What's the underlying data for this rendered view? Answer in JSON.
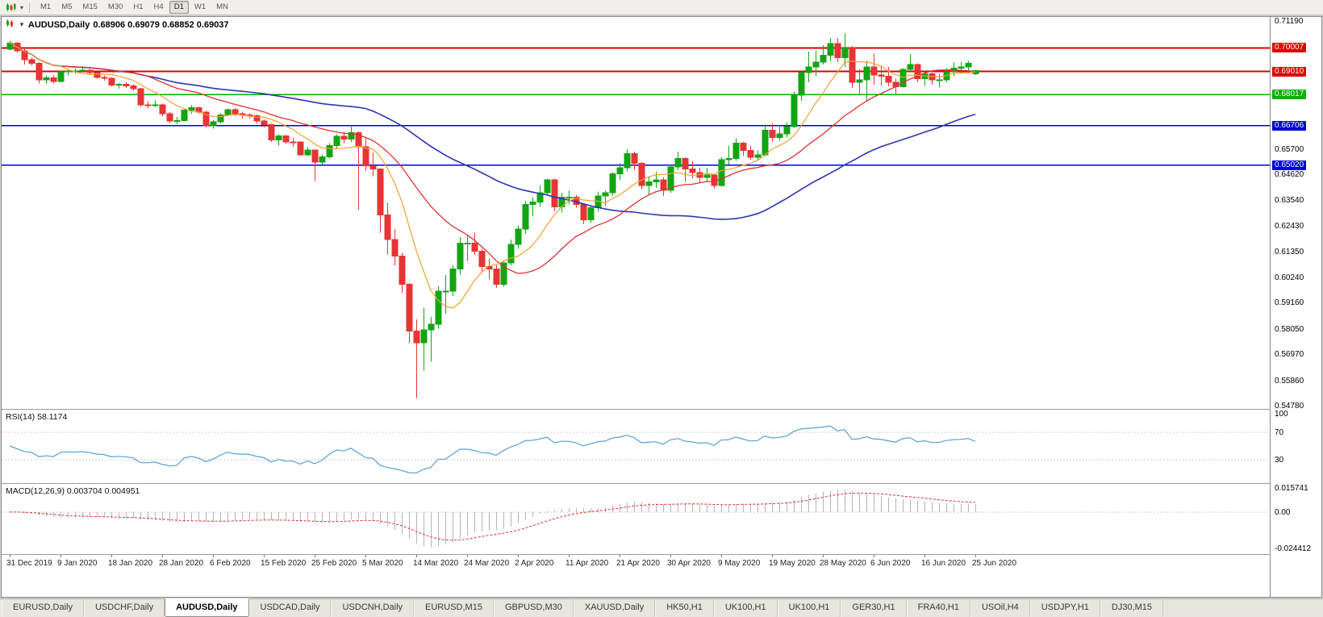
{
  "toolbar": {
    "chart_type_icon": "candlestick-chart-icon",
    "dropdown_icon": "chevron-down-icon",
    "timeframes": [
      "M1",
      "M5",
      "M15",
      "M30",
      "H1",
      "H4",
      "D1",
      "W1",
      "MN"
    ],
    "active_timeframe": "D1"
  },
  "chart_header": {
    "symbol_period": "AUDUSD,Daily",
    "ohlc": "0.68906 0.69079 0.68852 0.69037",
    "open": "0.68906",
    "high": "0.69079",
    "low": "0.68852",
    "close": "0.69037"
  },
  "price_axis": {
    "scale_labels": [
      {
        "text": "0.71190",
        "price": 0.7119
      },
      {
        "text": "0.65700",
        "price": 0.657
      },
      {
        "text": "0.64620",
        "price": 0.6462
      },
      {
        "text": "0.63540",
        "price": 0.6354
      },
      {
        "text": "0.62430",
        "price": 0.6243
      },
      {
        "text": "0.61350",
        "price": 0.6135
      },
      {
        "text": "0.60240",
        "price": 0.6024
      },
      {
        "text": "0.59160",
        "price": 0.5916
      },
      {
        "text": "0.58050",
        "price": 0.5805
      },
      {
        "text": "0.56970",
        "price": 0.5697
      },
      {
        "text": "0.55860",
        "price": 0.5586
      },
      {
        "text": "0.54780",
        "price": 0.5478
      }
    ],
    "badges": [
      {
        "text": "0.70007",
        "price": 0.70007,
        "color": "#e00000"
      },
      {
        "text": "0.69010",
        "price": 0.6901,
        "color": "#e00000"
      },
      {
        "text": "0.68017",
        "price": 0.68017,
        "color": "#00b200"
      },
      {
        "text": "0.66706",
        "price": 0.66706,
        "color": "#0000d8"
      },
      {
        "text": "0.65020",
        "price": 0.6502,
        "color": "#0000d8"
      }
    ]
  },
  "rsi_panel": {
    "name": "RSI(14)",
    "value": "58.1174",
    "line_color": "#5a9fd4",
    "level_upper": 70,
    "level_lower": 30,
    "scale": [
      {
        "text": "100",
        "value": 100
      },
      {
        "text": "70",
        "value": 70
      },
      {
        "text": "30",
        "value": 30
      }
    ]
  },
  "macd_panel": {
    "name": "MACD(12,26,9)",
    "values": "0.003704 0.004951",
    "histogram_color": "#b4b4b4",
    "signal_color": "#e03030",
    "range": [
      -0.024412,
      0.015741
    ],
    "scale": [
      {
        "text": "0.015741",
        "value": 0.015741
      },
      {
        "text": "0.00",
        "value": 0
      },
      {
        "text": "-0.024412",
        "value": -0.024412
      }
    ]
  },
  "tabs": {
    "active_index": 2,
    "items": [
      {
        "label": "EURUSD,Daily"
      },
      {
        "label": "USDCHF,Daily"
      },
      {
        "label": "AUDUSD,Daily"
      },
      {
        "label": "USDCAD,Daily"
      },
      {
        "label": "USDCNH,Daily"
      },
      {
        "label": "EURUSD,M15"
      },
      {
        "label": "GBPUSD,M30"
      },
      {
        "label": "XAUUSD,Daily"
      },
      {
        "label": "HK50,H1"
      },
      {
        "label": "UK100,H1"
      },
      {
        "label": "UK100,H1"
      },
      {
        "label": "GER30,H1"
      },
      {
        "label": "FRA40,H1"
      },
      {
        "label": "USOil,H4"
      },
      {
        "label": "USDJPY,H1"
      },
      {
        "label": "DJ30,M15"
      }
    ]
  },
  "chart_data": {
    "type": "candlestick",
    "symbol": "AUDUSD",
    "timeframe": "Daily",
    "ylim": [
      0.5478,
      0.7119
    ],
    "up_color": "#12a512",
    "down_color": "#e73434",
    "ma": {
      "fast": {
        "period": 8,
        "color": "#f0a132"
      },
      "mid": {
        "period": 20,
        "color": "#dd3333"
      },
      "slow": {
        "period": 50,
        "color": "#2d35b5"
      }
    },
    "x_tick_labels": [
      "31 Dec 2019",
      "9 Jan 2020",
      "18 Jan 2020",
      "28 Jan 2020",
      "6 Feb 2020",
      "15 Feb 2020",
      "25 Feb 2020",
      "5 Mar 2020",
      "14 Mar 2020",
      "24 Mar 2020",
      "2 Apr 2020",
      "11 Apr 2020",
      "21 Apr 2020",
      "30 Apr 2020",
      "9 May 2020",
      "19 May 2020",
      "28 May 2020",
      "6 Jun 2020",
      "16 Jun 2020",
      "25 Jun 2020"
    ],
    "candles": [
      [
        0.6995,
        0.7032,
        0.699,
        0.7021
      ],
      [
        0.7021,
        0.7026,
        0.698,
        0.6988
      ],
      [
        0.6988,
        0.7,
        0.693,
        0.695
      ],
      [
        0.695,
        0.696,
        0.6925,
        0.6935
      ],
      [
        0.6935,
        0.694,
        0.685,
        0.6865
      ],
      [
        0.6865,
        0.6882,
        0.685,
        0.6874
      ],
      [
        0.6874,
        0.6884,
        0.6849,
        0.6858
      ],
      [
        0.6858,
        0.6905,
        0.6855,
        0.69
      ],
      [
        0.69,
        0.6912,
        0.6884,
        0.6903
      ],
      [
        0.6903,
        0.6913,
        0.689,
        0.6903
      ],
      [
        0.6903,
        0.6923,
        0.6897,
        0.6906
      ],
      [
        0.6906,
        0.6912,
        0.6885,
        0.6896
      ],
      [
        0.6896,
        0.69,
        0.687,
        0.6876
      ],
      [
        0.6876,
        0.6884,
        0.6862,
        0.6871
      ],
      [
        0.6871,
        0.6875,
        0.6837,
        0.6843
      ],
      [
        0.6843,
        0.6852,
        0.6828,
        0.6846
      ],
      [
        0.6846,
        0.6855,
        0.6829,
        0.684
      ],
      [
        0.684,
        0.6846,
        0.6818,
        0.6828
      ],
      [
        0.6828,
        0.683,
        0.675,
        0.6758
      ],
      [
        0.6758,
        0.6774,
        0.6744,
        0.6755
      ],
      [
        0.6755,
        0.6778,
        0.675,
        0.6759
      ],
      [
        0.6759,
        0.6764,
        0.671,
        0.672
      ],
      [
        0.672,
        0.6728,
        0.6682,
        0.669
      ],
      [
        0.669,
        0.6707,
        0.6678,
        0.6692
      ],
      [
        0.6692,
        0.674,
        0.6688,
        0.6736
      ],
      [
        0.6736,
        0.6756,
        0.672,
        0.6746
      ],
      [
        0.6746,
        0.675,
        0.672,
        0.6727
      ],
      [
        0.6727,
        0.6732,
        0.6662,
        0.667
      ],
      [
        0.667,
        0.6695,
        0.6657,
        0.6687
      ],
      [
        0.6687,
        0.6722,
        0.668,
        0.6715
      ],
      [
        0.6715,
        0.6743,
        0.671,
        0.6738
      ],
      [
        0.6738,
        0.6745,
        0.671,
        0.672
      ],
      [
        0.672,
        0.673,
        0.67,
        0.6715
      ],
      [
        0.6715,
        0.6723,
        0.67,
        0.6713
      ],
      [
        0.6713,
        0.6717,
        0.668,
        0.669
      ],
      [
        0.669,
        0.6696,
        0.6662,
        0.6675
      ],
      [
        0.6675,
        0.6678,
        0.66,
        0.661
      ],
      [
        0.661,
        0.6634,
        0.6585,
        0.6627
      ],
      [
        0.6627,
        0.663,
        0.6592,
        0.6601
      ],
      [
        0.6601,
        0.6617,
        0.658,
        0.66
      ],
      [
        0.66,
        0.6602,
        0.6542,
        0.6546
      ],
      [
        0.6546,
        0.6578,
        0.654,
        0.6566
      ],
      [
        0.6566,
        0.6568,
        0.6434,
        0.6515
      ],
      [
        0.6515,
        0.6548,
        0.6505,
        0.6537
      ],
      [
        0.6537,
        0.6596,
        0.653,
        0.6585
      ],
      [
        0.6585,
        0.6633,
        0.657,
        0.6625
      ],
      [
        0.6625,
        0.6645,
        0.6595,
        0.6613
      ],
      [
        0.6613,
        0.6665,
        0.66,
        0.664
      ],
      [
        0.664,
        0.6646,
        0.6313,
        0.658
      ],
      [
        0.658,
        0.6616,
        0.6477,
        0.65
      ],
      [
        0.65,
        0.6556,
        0.6455,
        0.6485
      ],
      [
        0.6485,
        0.6486,
        0.6214,
        0.629
      ],
      [
        0.629,
        0.6342,
        0.6122,
        0.6185
      ],
      [
        0.6185,
        0.623,
        0.6075,
        0.6115
      ],
      [
        0.6115,
        0.6128,
        0.5958,
        0.5995
      ],
      [
        0.5995,
        0.6,
        0.5745,
        0.5795
      ],
      [
        0.5795,
        0.5845,
        0.551,
        0.5745
      ],
      [
        0.5745,
        0.5895,
        0.5628,
        0.58
      ],
      [
        0.58,
        0.5855,
        0.5665,
        0.5825
      ],
      [
        0.5825,
        0.5988,
        0.5805,
        0.5965
      ],
      [
        0.5965,
        0.6035,
        0.587,
        0.5965
      ],
      [
        0.5965,
        0.6075,
        0.5945,
        0.606
      ],
      [
        0.606,
        0.6195,
        0.6035,
        0.617
      ],
      [
        0.617,
        0.62,
        0.6095,
        0.617
      ],
      [
        0.617,
        0.6215,
        0.612,
        0.6135
      ],
      [
        0.6135,
        0.6145,
        0.605,
        0.607
      ],
      [
        0.607,
        0.6105,
        0.6015,
        0.606
      ],
      [
        0.606,
        0.6075,
        0.598,
        0.5995
      ],
      [
        0.5995,
        0.609,
        0.5985,
        0.6085
      ],
      [
        0.6085,
        0.6185,
        0.6075,
        0.6165
      ],
      [
        0.6165,
        0.6245,
        0.6145,
        0.623
      ],
      [
        0.623,
        0.635,
        0.621,
        0.6335
      ],
      [
        0.6335,
        0.6365,
        0.6285,
        0.6345
      ],
      [
        0.6345,
        0.6415,
        0.6325,
        0.6385
      ],
      [
        0.6385,
        0.6445,
        0.6375,
        0.644
      ],
      [
        0.644,
        0.6445,
        0.6305,
        0.6325
      ],
      [
        0.6325,
        0.6385,
        0.63,
        0.6365
      ],
      [
        0.6365,
        0.6395,
        0.6335,
        0.6365
      ],
      [
        0.6365,
        0.6375,
        0.632,
        0.6335
      ],
      [
        0.6335,
        0.634,
        0.625,
        0.627
      ],
      [
        0.627,
        0.633,
        0.6255,
        0.632
      ],
      [
        0.632,
        0.639,
        0.6305,
        0.637
      ],
      [
        0.637,
        0.6395,
        0.633,
        0.6385
      ],
      [
        0.6385,
        0.6472,
        0.637,
        0.6465
      ],
      [
        0.6465,
        0.651,
        0.644,
        0.649
      ],
      [
        0.649,
        0.657,
        0.6475,
        0.655
      ],
      [
        0.655,
        0.656,
        0.648,
        0.651
      ],
      [
        0.651,
        0.6515,
        0.64,
        0.6415
      ],
      [
        0.6415,
        0.6455,
        0.6372,
        0.643
      ],
      [
        0.643,
        0.6475,
        0.6405,
        0.644
      ],
      [
        0.644,
        0.645,
        0.637,
        0.6395
      ],
      [
        0.6395,
        0.6505,
        0.6385,
        0.6495
      ],
      [
        0.6495,
        0.656,
        0.648,
        0.653
      ],
      [
        0.653,
        0.6535,
        0.6432,
        0.6485
      ],
      [
        0.6485,
        0.6518,
        0.6445,
        0.647
      ],
      [
        0.647,
        0.649,
        0.6425,
        0.645
      ],
      [
        0.645,
        0.649,
        0.643,
        0.646
      ],
      [
        0.646,
        0.6465,
        0.6402,
        0.6415
      ],
      [
        0.6415,
        0.6535,
        0.641,
        0.6525
      ],
      [
        0.6525,
        0.6585,
        0.6505,
        0.653
      ],
      [
        0.653,
        0.6616,
        0.652,
        0.6595
      ],
      [
        0.6595,
        0.66,
        0.654,
        0.6565
      ],
      [
        0.6565,
        0.6585,
        0.6525,
        0.6535
      ],
      [
        0.6535,
        0.6565,
        0.652,
        0.6545
      ],
      [
        0.6545,
        0.6675,
        0.654,
        0.665
      ],
      [
        0.665,
        0.668,
        0.6602,
        0.662
      ],
      [
        0.662,
        0.6665,
        0.6605,
        0.6635
      ],
      [
        0.6635,
        0.6685,
        0.662,
        0.6665
      ],
      [
        0.6665,
        0.6815,
        0.666,
        0.68
      ],
      [
        0.68,
        0.69,
        0.6775,
        0.6895
      ],
      [
        0.6895,
        0.6985,
        0.6855,
        0.692
      ],
      [
        0.692,
        0.6988,
        0.688,
        0.694
      ],
      [
        0.694,
        0.7013,
        0.693,
        0.697
      ],
      [
        0.697,
        0.7043,
        0.6945,
        0.702
      ],
      [
        0.702,
        0.7042,
        0.694,
        0.696
      ],
      [
        0.696,
        0.7064,
        0.692,
        0.7
      ],
      [
        0.7,
        0.701,
        0.683,
        0.6855
      ],
      [
        0.6855,
        0.691,
        0.68,
        0.6865
      ],
      [
        0.6865,
        0.6945,
        0.6775,
        0.692
      ],
      [
        0.692,
        0.6977,
        0.6845,
        0.6885
      ],
      [
        0.6885,
        0.6925,
        0.684,
        0.688
      ],
      [
        0.688,
        0.692,
        0.6837,
        0.6855
      ],
      [
        0.6855,
        0.687,
        0.6805,
        0.6835
      ],
      [
        0.6835,
        0.6915,
        0.6832,
        0.691
      ],
      [
        0.691,
        0.6975,
        0.69,
        0.693
      ],
      [
        0.693,
        0.6935,
        0.6855,
        0.687
      ],
      [
        0.687,
        0.6905,
        0.684,
        0.689
      ],
      [
        0.689,
        0.6895,
        0.6845,
        0.6865
      ],
      [
        0.6865,
        0.689,
        0.6832,
        0.6865
      ],
      [
        0.6865,
        0.6915,
        0.6855,
        0.69
      ],
      [
        0.69,
        0.694,
        0.688,
        0.6915
      ],
      [
        0.6915,
        0.694,
        0.689,
        0.692
      ],
      [
        0.692,
        0.6945,
        0.69,
        0.6935
      ],
      [
        0.68906,
        0.69079,
        0.68852,
        0.69037
      ]
    ]
  }
}
